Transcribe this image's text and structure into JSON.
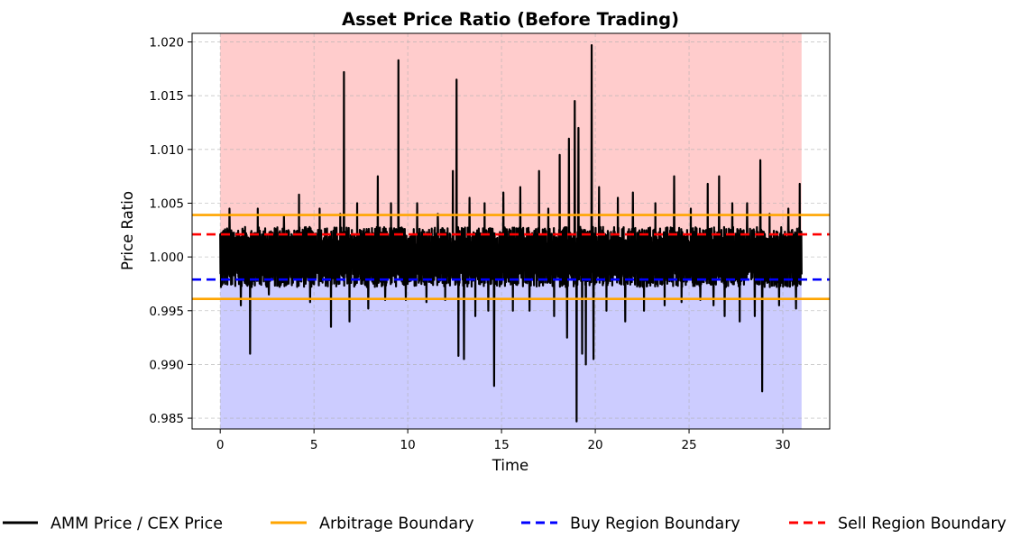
{
  "chart_data": {
    "type": "line",
    "title": "Asset Price Ratio (Before Trading)",
    "xlabel": "Time",
    "ylabel": "Price Ratio",
    "xlim": [
      -1.5,
      32.5
    ],
    "ylim": [
      0.984,
      1.0208
    ],
    "xticks": [
      0,
      5,
      10,
      15,
      20,
      25,
      30
    ],
    "xtick_labels": [
      "0",
      "5",
      "10",
      "15",
      "20",
      "25",
      "30"
    ],
    "yticks": [
      0.985,
      0.99,
      0.995,
      1.0,
      1.005,
      1.01,
      1.015,
      1.02
    ],
    "ytick_labels": [
      "0.985",
      "0.990",
      "0.995",
      "1.000",
      "1.005",
      "1.010",
      "1.015",
      "1.020"
    ],
    "grid": true,
    "legend_position": "bottom",
    "regions": [
      {
        "name": "sell-region",
        "x_range": [
          0,
          31
        ],
        "y_range": [
          1.0,
          "top"
        ],
        "color": "#ffcccc"
      },
      {
        "name": "buy-region",
        "x_range": [
          0,
          31
        ],
        "y_range": [
          "bottom",
          1.0
        ],
        "color": "#ccccff"
      }
    ],
    "series": [
      {
        "name": "AMM Price / CEX Price",
        "color": "#000000",
        "style": "solid",
        "x_range": [
          0,
          31
        ],
        "band_low": 0.9972,
        "band_high": 1.0028,
        "spikes": [
          {
            "x": 0.5,
            "y": 1.0045
          },
          {
            "x": 1.1,
            "y": 0.9955
          },
          {
            "x": 1.6,
            "y": 0.991
          },
          {
            "x": 2.0,
            "y": 1.0045
          },
          {
            "x": 2.6,
            "y": 0.9965
          },
          {
            "x": 3.4,
            "y": 1.0038
          },
          {
            "x": 4.2,
            "y": 1.0058
          },
          {
            "x": 4.8,
            "y": 0.9958
          },
          {
            "x": 5.3,
            "y": 1.0045
          },
          {
            "x": 5.9,
            "y": 0.9935
          },
          {
            "x": 6.4,
            "y": 1.004
          },
          {
            "x": 6.6,
            "y": 1.0172
          },
          {
            "x": 6.9,
            "y": 0.994
          },
          {
            "x": 7.3,
            "y": 1.005
          },
          {
            "x": 7.9,
            "y": 0.9952
          },
          {
            "x": 8.4,
            "y": 1.0075
          },
          {
            "x": 8.8,
            "y": 0.996
          },
          {
            "x": 9.1,
            "y": 1.005
          },
          {
            "x": 9.5,
            "y": 1.0183
          },
          {
            "x": 9.9,
            "y": 0.996
          },
          {
            "x": 10.5,
            "y": 1.005
          },
          {
            "x": 11.0,
            "y": 0.9958
          },
          {
            "x": 11.6,
            "y": 1.004
          },
          {
            "x": 12.0,
            "y": 0.996
          },
          {
            "x": 12.4,
            "y": 1.008
          },
          {
            "x": 12.6,
            "y": 1.0165
          },
          {
            "x": 12.7,
            "y": 0.9908
          },
          {
            "x": 13.0,
            "y": 0.9905
          },
          {
            "x": 13.3,
            "y": 1.0055
          },
          {
            "x": 13.6,
            "y": 0.9945
          },
          {
            "x": 14.1,
            "y": 1.005
          },
          {
            "x": 14.3,
            "y": 0.995
          },
          {
            "x": 14.6,
            "y": 0.988
          },
          {
            "x": 15.1,
            "y": 1.006
          },
          {
            "x": 15.6,
            "y": 0.995
          },
          {
            "x": 16.0,
            "y": 1.0065
          },
          {
            "x": 16.5,
            "y": 0.995
          },
          {
            "x": 17.0,
            "y": 1.008
          },
          {
            "x": 17.5,
            "y": 1.0045
          },
          {
            "x": 17.8,
            "y": 0.9945
          },
          {
            "x": 18.1,
            "y": 1.0095
          },
          {
            "x": 18.5,
            "y": 0.9925
          },
          {
            "x": 18.6,
            "y": 1.011
          },
          {
            "x": 18.9,
            "y": 1.0145
          },
          {
            "x": 19.0,
            "y": 0.9847
          },
          {
            "x": 19.1,
            "y": 1.012
          },
          {
            "x": 19.3,
            "y": 0.991
          },
          {
            "x": 19.5,
            "y": 0.99
          },
          {
            "x": 19.8,
            "y": 1.0197
          },
          {
            "x": 19.9,
            "y": 0.9905
          },
          {
            "x": 20.2,
            "y": 1.0065
          },
          {
            "x": 20.6,
            "y": 0.995
          },
          {
            "x": 21.2,
            "y": 1.0055
          },
          {
            "x": 21.6,
            "y": 0.994
          },
          {
            "x": 22.0,
            "y": 1.006
          },
          {
            "x": 22.6,
            "y": 0.995
          },
          {
            "x": 23.2,
            "y": 1.005
          },
          {
            "x": 23.7,
            "y": 0.9955
          },
          {
            "x": 24.2,
            "y": 1.0075
          },
          {
            "x": 24.6,
            "y": 0.9958
          },
          {
            "x": 25.1,
            "y": 1.0045
          },
          {
            "x": 25.6,
            "y": 0.996
          },
          {
            "x": 26.0,
            "y": 1.0068
          },
          {
            "x": 26.3,
            "y": 0.9955
          },
          {
            "x": 26.6,
            "y": 1.0075
          },
          {
            "x": 26.9,
            "y": 0.9945
          },
          {
            "x": 27.3,
            "y": 1.005
          },
          {
            "x": 27.7,
            "y": 0.994
          },
          {
            "x": 28.1,
            "y": 1.005
          },
          {
            "x": 28.5,
            "y": 0.9945
          },
          {
            "x": 28.8,
            "y": 1.009
          },
          {
            "x": 28.9,
            "y": 0.9875
          },
          {
            "x": 29.3,
            "y": 1.004
          },
          {
            "x": 29.8,
            "y": 0.9955
          },
          {
            "x": 30.3,
            "y": 1.0045
          },
          {
            "x": 30.7,
            "y": 0.9952
          },
          {
            "x": 30.9,
            "y": 1.0068
          }
        ]
      },
      {
        "name": "Arbitrage Boundary",
        "color": "#ffa500",
        "style": "solid",
        "values": [
          0.9961,
          1.0039
        ]
      },
      {
        "name": "Buy Region Boundary",
        "color": "#0000ff",
        "style": "dashed",
        "value": 0.9979
      },
      {
        "name": "Sell Region Boundary",
        "color": "#ff0000",
        "style": "dashed",
        "value": 1.0021
      }
    ]
  }
}
